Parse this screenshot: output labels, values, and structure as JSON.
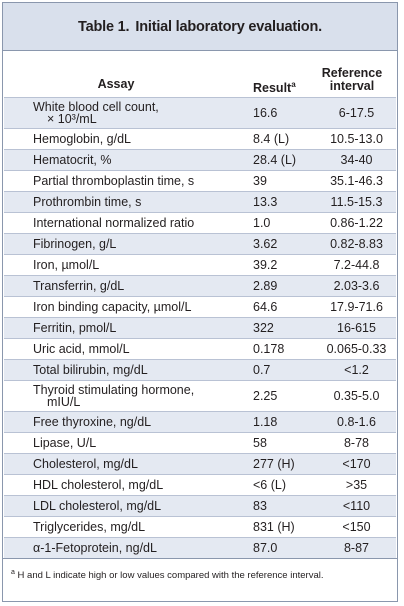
{
  "title": {
    "label": "Table 1.",
    "text": "Initial laboratory evaluation."
  },
  "columns": {
    "assay": "Assay",
    "result": "Result",
    "result_superscript": "a",
    "reference_line1": "Reference",
    "reference_line2": "interval"
  },
  "rows": [
    {
      "assay": "White blood cell count,",
      "assay_line2": "× 10³/mL",
      "result": "16.6",
      "reference": "6-17.5"
    },
    {
      "assay": "Hemoglobin, g/dL",
      "result": "8.4 (L)",
      "reference": "10.5-13.0"
    },
    {
      "assay": "Hematocrit, %",
      "result": "28.4 (L)",
      "reference": "34-40"
    },
    {
      "assay": "Partial thromboplastin time, s",
      "result": "39",
      "reference": "35.1-46.3"
    },
    {
      "assay": "Prothrombin time, s",
      "result": "13.3",
      "reference": "11.5-15.3"
    },
    {
      "assay": "International normalized ratio",
      "result": "1.0",
      "reference": "0.86-1.22"
    },
    {
      "assay": "Fibrinogen, g/L",
      "result": "3.62",
      "reference": "0.82-8.83"
    },
    {
      "assay": "Iron, µmol/L",
      "result": "39.2",
      "reference": "7.2-44.8"
    },
    {
      "assay": "Transferrin, g/dL",
      "result": "2.89",
      "reference": "2.03-3.6"
    },
    {
      "assay": "Iron binding capacity, µmol/L",
      "result": "64.6",
      "reference": "17.9-71.6"
    },
    {
      "assay": "Ferritin, pmol/L",
      "result": "322",
      "reference": "16-615"
    },
    {
      "assay": "Uric acid, mmol/L",
      "result": "0.178",
      "reference": "0.065-0.33"
    },
    {
      "assay": "Total bilirubin, mg/dL",
      "result": "0.7",
      "reference": "<1.2"
    },
    {
      "assay": "Thyroid stimulating hormone,",
      "assay_line2": "mIU/L",
      "result": "2.25",
      "reference": "0.35-5.0"
    },
    {
      "assay": "Free thyroxine, ng/dL",
      "result": "1.18",
      "reference": "0.8-1.6"
    },
    {
      "assay": "Lipase, U/L",
      "result": "58",
      "reference": "8-78"
    },
    {
      "assay": "Cholesterol, mg/dL",
      "result": "277 (H)",
      "reference": "<170"
    },
    {
      "assay": "HDL cholesterol, mg/dL",
      "result": "<6 (L)",
      "reference": ">35"
    },
    {
      "assay": "LDL cholesterol, mg/dL",
      "result": "83",
      "reference": "<110"
    },
    {
      "assay": "Triglycerides, mg/dL",
      "result": "831 (H)",
      "reference": "<150"
    },
    {
      "assay": "α-1-Fetoprotein, ng/dL",
      "result": "87.0",
      "reference": "8-87"
    }
  ],
  "footnote": {
    "marker": "a",
    "text": "H and L indicate high or low values compared with the reference interval."
  }
}
